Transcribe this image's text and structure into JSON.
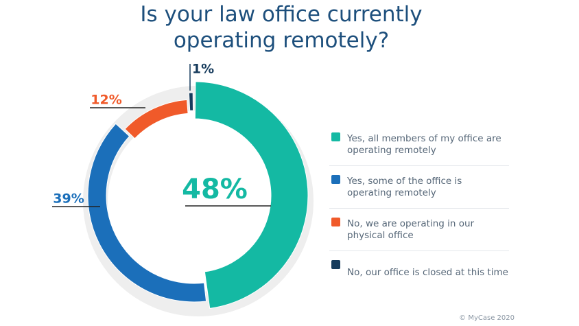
{
  "chart_data": {
    "type": "donut",
    "title": "Is your law office currently operating remotely?",
    "categories": [
      "Yes, all members of my office are operating remotely",
      "Yes, some of the office is operating remotely",
      "No, we are operating in our physical office",
      "No, our office is closed at this time"
    ],
    "values": [
      48,
      39,
      12,
      1
    ],
    "value_labels": [
      "48%",
      "39%",
      "12%",
      "1%"
    ],
    "colors": [
      "#14b9a3",
      "#1b6fba",
      "#f05a2a",
      "#163b5c"
    ],
    "legend": "right",
    "source": "© MyCase 2020"
  }
}
